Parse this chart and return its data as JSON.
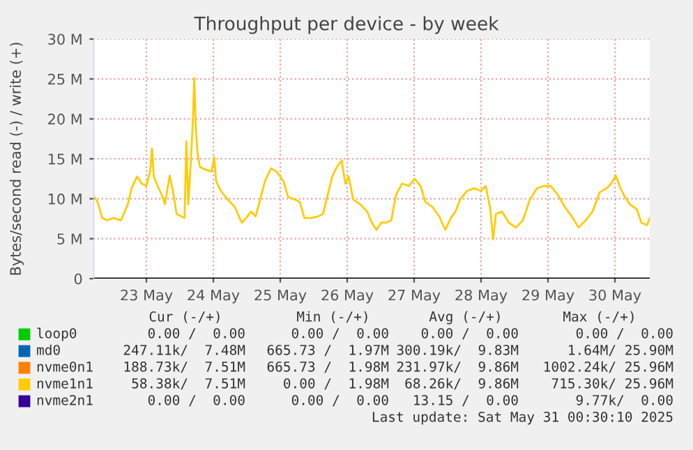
{
  "chart_data": {
    "type": "line",
    "title": "Throughput per device - by week",
    "ylabel": "Bytes/second read (-) / write (+)",
    "x": [
      "2025-05-22T05:20",
      "2025-05-22T06:30",
      "2025-05-22T08:10",
      "2025-05-22T09:50",
      "2025-05-22T12:20",
      "2025-05-22T14:50",
      "2025-05-22T17:20",
      "2025-05-22T18:40",
      "2025-05-22T20:40",
      "2025-05-22T22:20",
      "2025-05-23T00:00",
      "2025-05-23T01:20",
      "2025-05-23T02:00",
      "2025-05-23T02:40",
      "2025-05-23T03:40",
      "2025-05-23T05:50",
      "2025-05-23T06:40",
      "2025-05-23T08:20",
      "2025-05-23T09:30",
      "2025-05-23T10:50",
      "2025-05-23T12:30",
      "2025-05-23T13:40",
      "2025-05-23T14:20",
      "2025-05-23T15:00",
      "2025-05-23T15:50",
      "2025-05-23T16:40",
      "2025-05-23T17:10",
      "2025-05-23T17:40",
      "2025-05-23T18:20",
      "2025-05-23T19:10",
      "2025-05-23T20:50",
      "2025-05-23T23:20",
      "2025-05-24T00:20",
      "2025-05-24T01:00",
      "2025-05-24T02:40",
      "2025-05-24T05:10",
      "2025-05-24T07:40",
      "2025-05-24T10:10",
      "2025-05-24T11:50",
      "2025-05-24T13:30",
      "2025-05-24T15:10",
      "2025-05-24T16:50",
      "2025-05-24T18:30",
      "2025-05-24T20:40",
      "2025-05-24T22:40",
      "2025-05-25T01:10",
      "2025-05-25T02:50",
      "2025-05-25T05:20",
      "2025-05-25T07:00",
      "2025-05-25T08:40",
      "2025-05-25T11:10",
      "2025-05-25T13:40",
      "2025-05-25T15:20",
      "2025-05-25T17:00",
      "2025-05-25T18:40",
      "2025-05-25T20:20",
      "2025-05-25T22:00",
      "2025-05-25T23:20",
      "2025-05-26T00:30",
      "2025-05-26T02:10",
      "2025-05-26T04:40",
      "2025-05-26T07:10",
      "2025-05-26T08:50",
      "2025-05-26T10:30",
      "2025-05-26T12:10",
      "2025-05-26T13:50",
      "2025-05-26T15:50",
      "2025-05-26T17:30",
      "2025-05-26T19:40",
      "2025-05-26T22:10",
      "2025-05-27T00:10",
      "2025-05-27T02:20",
      "2025-05-27T04:00",
      "2025-05-27T06:30",
      "2025-05-27T09:00",
      "2025-05-27T11:10",
      "2025-05-27T13:10",
      "2025-05-27T14:50",
      "2025-05-27T16:30",
      "2025-05-27T19:00",
      "2025-05-27T21:30",
      "2025-05-28T00:00",
      "2025-05-28T01:40",
      "2025-05-28T03:20",
      "2025-05-28T04:20",
      "2025-05-28T05:20",
      "2025-05-28T07:30",
      "2025-05-28T10:00",
      "2025-05-28T12:30",
      "2025-05-28T15:00",
      "2025-05-28T17:30",
      "2025-05-28T20:00",
      "2025-05-28T22:30",
      "2025-05-29T01:00",
      "2025-05-29T03:30",
      "2025-05-29T06:00",
      "2025-05-29T08:30",
      "2025-05-29T11:00",
      "2025-05-29T13:30",
      "2025-05-29T16:00",
      "2025-05-29T18:30",
      "2025-05-29T21:00",
      "2025-05-29T22:40",
      "2025-05-30T00:20",
      "2025-05-30T02:00",
      "2025-05-30T03:40",
      "2025-05-30T05:20",
      "2025-05-30T07:50",
      "2025-05-30T09:30",
      "2025-05-30T11:30",
      "2025-05-30T12:30"
    ],
    "series": [
      {
        "name": "loop0",
        "color": "#00cc00",
        "values": [
          null,
          null,
          null,
          null,
          null,
          null,
          null,
          null,
          null,
          null,
          null,
          null,
          null,
          null,
          null,
          null,
          null,
          null,
          null,
          null,
          null,
          null,
          null,
          null,
          null,
          null,
          null,
          null,
          null,
          null,
          null,
          null,
          null,
          null,
          null,
          null,
          null,
          null,
          null,
          null,
          null,
          null,
          null,
          null,
          null,
          null,
          null,
          null,
          null,
          null,
          null,
          null,
          null,
          null,
          null,
          null,
          null,
          null,
          null,
          null,
          null,
          null,
          null,
          null,
          null,
          null,
          null,
          null,
          null,
          null,
          null,
          null,
          null,
          null,
          null,
          null,
          null,
          null,
          null,
          null,
          null,
          null,
          null,
          null,
          null,
          null,
          null,
          null,
          null,
          null,
          null,
          null,
          null,
          null,
          null,
          null,
          null,
          null,
          null,
          null,
          null,
          null,
          null,
          null,
          null,
          null,
          null,
          null,
          null,
          null,
          null
        ]
      },
      {
        "name": "md0",
        "color": "#0066b3",
        "values": [
          null,
          null,
          null,
          null,
          null,
          null,
          null,
          null,
          null,
          null,
          null,
          null,
          null,
          null,
          null,
          null,
          null,
          null,
          null,
          null,
          null,
          null,
          null,
          null,
          null,
          null,
          null,
          null,
          null,
          null,
          null,
          null,
          null,
          null,
          null,
          null,
          null,
          null,
          null,
          null,
          null,
          null,
          null,
          null,
          null,
          null,
          null,
          null,
          null,
          null,
          null,
          null,
          null,
          null,
          null,
          null,
          null,
          null,
          null,
          null,
          null,
          null,
          null,
          null,
          null,
          null,
          null,
          null,
          null,
          null,
          null,
          null,
          null,
          null,
          null,
          null,
          null,
          null,
          null,
          null,
          null,
          null,
          null,
          null,
          null,
          null,
          null,
          null,
          null,
          null,
          null,
          null,
          null,
          null,
          null,
          null,
          null,
          null,
          null,
          null,
          null,
          null,
          null,
          null,
          null,
          null,
          null,
          null,
          null,
          null,
          null
        ]
      },
      {
        "name": "nvme0n1",
        "color": "#ff8000",
        "values": [
          null,
          null,
          null,
          null,
          null,
          null,
          null,
          null,
          null,
          null,
          null,
          null,
          null,
          null,
          null,
          null,
          null,
          null,
          null,
          null,
          null,
          null,
          null,
          null,
          null,
          null,
          null,
          null,
          null,
          null,
          null,
          null,
          null,
          null,
          null,
          null,
          null,
          null,
          null,
          null,
          null,
          null,
          null,
          null,
          null,
          null,
          null,
          null,
          null,
          null,
          null,
          null,
          null,
          null,
          null,
          null,
          null,
          null,
          null,
          null,
          null,
          null,
          null,
          null,
          null,
          null,
          null,
          null,
          null,
          null,
          null,
          null,
          null,
          null,
          null,
          null,
          null,
          null,
          null,
          null,
          null,
          null,
          null,
          null,
          null,
          null,
          null,
          null,
          null,
          null,
          null,
          null,
          null,
          null,
          null,
          null,
          null,
          null,
          null,
          null,
          null,
          null,
          null,
          null,
          null,
          null,
          null,
          null,
          null,
          null,
          null
        ]
      },
      {
        "name": "nvme1n1",
        "color": "#ffcc00",
        "values": [
          10.2,
          9.6,
          7.6,
          7.3,
          7.6,
          7.3,
          9.3,
          11.3,
          12.8,
          11.9,
          11.6,
          13.4,
          16.3,
          12.8,
          11.9,
          10.2,
          9.3,
          12.9,
          11.0,
          8.1,
          7.8,
          7.6,
          17.2,
          9.3,
          14.0,
          19.8,
          25.1,
          19.2,
          15.7,
          14.0,
          13.7,
          13.4,
          15.2,
          12.2,
          11.0,
          9.9,
          9.0,
          7.0,
          7.6,
          8.4,
          7.8,
          9.9,
          12.2,
          13.8,
          13.4,
          12.2,
          10.2,
          9.9,
          9.6,
          7.6,
          7.6,
          7.8,
          8.1,
          10.5,
          12.8,
          14.0,
          14.8,
          11.9,
          12.8,
          9.9,
          9.3,
          8.4,
          7.0,
          6.1,
          7.0,
          7.0,
          7.3,
          10.5,
          11.9,
          11.6,
          12.5,
          11.6,
          9.6,
          9.0,
          7.8,
          6.1,
          7.6,
          8.4,
          9.9,
          11.0,
          11.3,
          11.0,
          11.6,
          8.7,
          4.9,
          8.1,
          8.4,
          7.0,
          6.4,
          7.3,
          9.9,
          11.3,
          11.6,
          11.6,
          10.5,
          9.0,
          7.8,
          6.4,
          7.3,
          8.4,
          10.8,
          11.3,
          11.9,
          12.9,
          11.3,
          10.2,
          9.3,
          8.7,
          7.0,
          6.7,
          7.6
        ]
      },
      {
        "name": "nvme2n1",
        "color": "#330099",
        "values": [
          null,
          null,
          null,
          null,
          null,
          null,
          null,
          null,
          null,
          null,
          null,
          null,
          null,
          null,
          null,
          null,
          null,
          null,
          null,
          null,
          null,
          null,
          null,
          null,
          null,
          null,
          null,
          null,
          null,
          null,
          null,
          null,
          null,
          null,
          null,
          null,
          null,
          null,
          null,
          null,
          null,
          null,
          null,
          null,
          null,
          null,
          null,
          null,
          null,
          null,
          null,
          null,
          null,
          null,
          null,
          null,
          null,
          null,
          null,
          null,
          null,
          null,
          null,
          null,
          null,
          null,
          null,
          null,
          null,
          null,
          null,
          null,
          null,
          null,
          null,
          null,
          null,
          null,
          null,
          null,
          null,
          null,
          null,
          null,
          null,
          null,
          null,
          null,
          null,
          null,
          null,
          null,
          null,
          null,
          null,
          null,
          null,
          null,
          null,
          null,
          null,
          null,
          null,
          null,
          null,
          null,
          null,
          null,
          null,
          null,
          null
        ]
      }
    ],
    "xlim": [
      "2025-05-22T05:00",
      "2025-05-30T12:30"
    ],
    "xticks": [
      {
        "value": "2025-05-23",
        "label": "23 May"
      },
      {
        "value": "2025-05-24",
        "label": "24 May"
      },
      {
        "value": "2025-05-25",
        "label": "25 May"
      },
      {
        "value": "2025-05-26",
        "label": "26 May"
      },
      {
        "value": "2025-05-27",
        "label": "27 May"
      },
      {
        "value": "2025-05-28",
        "label": "28 May"
      },
      {
        "value": "2025-05-29",
        "label": "29 May"
      },
      {
        "value": "2025-05-30",
        "label": "30 May"
      }
    ],
    "ylim": [
      0,
      30
    ],
    "yticks": [
      0,
      {
        "value": 5,
        "label": "5 M"
      },
      {
        "value": 10,
        "label": "10 M"
      },
      {
        "value": 15,
        "label": "15 M"
      },
      {
        "value": 20,
        "label": "20 M"
      },
      {
        "value": 25,
        "label": "25 M"
      },
      {
        "value": 30,
        "label": "30 M"
      }
    ],
    "grid": true,
    "legend": "bottom",
    "marker": "none",
    "line_style": "solid",
    "annotations": [
      "Cur (-/+)",
      "Min (-/+)",
      "Avg (-/+)",
      "Max (-/+)",
      "0.00 /  0.00",
      "0.00 /  0.00",
      "0.00 /  0.00",
      "0.00 /  0.00",
      "247.11k/  7.48M",
      "665.73 /  1.97M",
      "300.19k/  9.83M",
      "1.64M/ 25.90M",
      "188.73k/  7.51M",
      "665.73 /  1.98M",
      "231.97k/  9.86M",
      "1002.24k/ 25.96M",
      "58.38k/  7.51M",
      "0.00 /  1.98M",
      "68.26k/  9.86M",
      "715.30k/ 25.96M",
      "0.00 /  0.00",
      "0.00 /  0.00",
      "13.15 /  0.00",
      "9.77k/  0.00",
      "Last update: Sat May 31 00:30:10 2025"
    ]
  }
}
